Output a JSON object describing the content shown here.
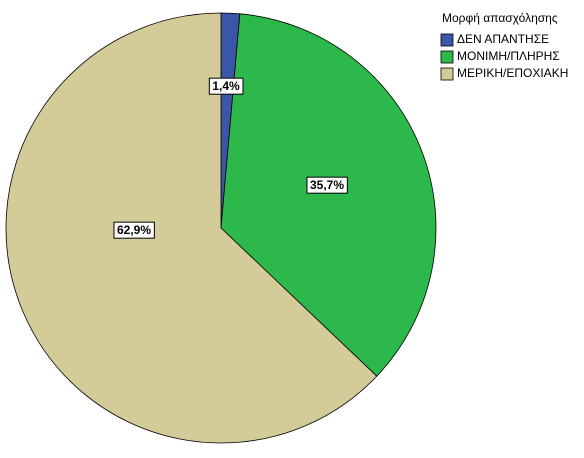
{
  "chart_data": {
    "type": "pie",
    "legend_title": "Μορφή απασχόλησης",
    "legend": "top-right",
    "categories": [
      "ΔΕΝ ΑΠΑΝΤΗΣΕ",
      "ΜΟΝΙΜΗ/ΠΛΗΡΗΣ",
      "ΜΕΡΙΚΗ/ΕΠΟΧΙΑΚΗ"
    ],
    "values": [
      1.4,
      35.7,
      62.9
    ],
    "value_labels": [
      "1,4%",
      "35,7%",
      "62,9%"
    ],
    "colors": [
      "#3a56a8",
      "#2db84b",
      "#d4cc98"
    ]
  }
}
